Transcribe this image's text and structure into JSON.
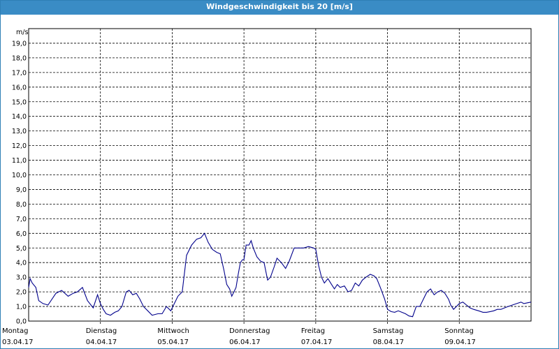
{
  "window": {
    "title": "Windgeschwindigkeit bis 20 [m/s]"
  },
  "colors": {
    "titlebar": "#3a8cc5",
    "line": "#00008b",
    "grid": "#000000"
  },
  "chart_data": {
    "type": "line",
    "title": "Windgeschwindigkeit bis 20 [m/s]",
    "ylabel": "m/s",
    "ylim": [
      0,
      20
    ],
    "xlim": [
      0,
      7
    ],
    "grid": true,
    "y_ticks": [
      0,
      1,
      2,
      3,
      4,
      5,
      6,
      7,
      8,
      9,
      10,
      11,
      12,
      13,
      14,
      15,
      16,
      17,
      18,
      19
    ],
    "y_tick_labels": [
      "0,0",
      "1,0",
      "2,0",
      "3,0",
      "4,0",
      "5,0",
      "6,0",
      "7,0",
      "8,0",
      "9,0",
      "10,0",
      "11,0",
      "12,0",
      "13,0",
      "14,0",
      "15,0",
      "16,0",
      "17,0",
      "18,0",
      "19,0"
    ],
    "days": [
      {
        "name": "Montag",
        "date": "03.04.17"
      },
      {
        "name": "Dienstag",
        "date": "04.04.17"
      },
      {
        "name": "Mittwoch",
        "date": "05.04.17"
      },
      {
        "name": "Donnerstag",
        "date": "06.04.17"
      },
      {
        "name": "Freitag",
        "date": "07.04.17"
      },
      {
        "name": "Samstag",
        "date": "08.04.17"
      },
      {
        "name": "Sonntag",
        "date": "09.04.17"
      }
    ],
    "series": [
      {
        "x": [
          0,
          0.02,
          0.05,
          0.1,
          0.14,
          0.2,
          0.27,
          0.38,
          0.46,
          0.55,
          0.62,
          0.68,
          0.75,
          0.82,
          0.9,
          0.96,
          1.0,
          1.04,
          1.08,
          1.14,
          1.2,
          1.25,
          1.3,
          1.36,
          1.4,
          1.45,
          1.5,
          1.55,
          1.6,
          1.66,
          1.72,
          1.8,
          1.86,
          1.92,
          1.98,
          2.03,
          2.08,
          2.14,
          2.2,
          2.27,
          2.34,
          2.4,
          2.45,
          2.5,
          2.56,
          2.62,
          2.67,
          2.72,
          2.76,
          2.8,
          2.83,
          2.86,
          2.89,
          2.92,
          2.95,
          2.98,
          3.0,
          3.03,
          3.07,
          3.1,
          3.13,
          3.18,
          3.23,
          3.28,
          3.33,
          3.37,
          3.42,
          3.46,
          3.52,
          3.58,
          3.63,
          3.7,
          3.77,
          3.83,
          3.9,
          3.97,
          4.0,
          4.04,
          4.08,
          4.12,
          4.17,
          4.22,
          4.26,
          4.3,
          4.34,
          4.4,
          4.45,
          4.5,
          4.55,
          4.6,
          4.65,
          4.7,
          4.76,
          4.81,
          4.85,
          4.9,
          4.96,
          5.0,
          5.05,
          5.1,
          5.15,
          5.2,
          5.25,
          5.3,
          5.35,
          5.4,
          5.45,
          5.5,
          5.55,
          5.6,
          5.65,
          5.7,
          5.75,
          5.8,
          5.85,
          5.88,
          5.92,
          5.96,
          6.0,
          6.05,
          6.1,
          6.15,
          6.2,
          6.27,
          6.33,
          6.38,
          6.43,
          6.48,
          6.53,
          6.58,
          6.63,
          6.68,
          6.74,
          6.8,
          6.86,
          6.9,
          6.95,
          7.0
        ],
        "values": [
          2.3,
          2.9,
          2.6,
          2.3,
          1.4,
          1.2,
          1.1,
          1.9,
          2.1,
          1.7,
          1.9,
          2.0,
          2.3,
          1.4,
          0.9,
          1.8,
          1.2,
          0.8,
          0.5,
          0.4,
          0.6,
          0.7,
          1.0,
          2.0,
          2.1,
          1.8,
          1.9,
          1.5,
          1.0,
          0.7,
          0.4,
          0.5,
          0.5,
          1.0,
          0.7,
          1.2,
          1.7,
          2.0,
          4.5,
          5.2,
          5.6,
          5.7,
          6.0,
          5.4,
          4.9,
          4.7,
          4.6,
          3.5,
          2.5,
          2.2,
          1.7,
          2.0,
          2.3,
          3.2,
          4.0,
          4.2,
          4.2,
          5.2,
          5.2,
          5.5,
          5.0,
          4.4,
          4.1,
          4.0,
          2.8,
          3.0,
          3.7,
          4.3,
          4.0,
          3.6,
          4.1,
          5.0,
          5.0,
          5.0,
          5.1,
          5.0,
          4.9,
          3.8,
          3.0,
          2.6,
          2.9,
          2.5,
          2.2,
          2.5,
          2.3,
          2.4,
          2.0,
          2.1,
          2.6,
          2.4,
          2.8,
          3.0,
          3.2,
          3.1,
          2.9,
          2.3,
          1.5,
          0.8,
          0.65,
          0.6,
          0.7,
          0.6,
          0.5,
          0.35,
          0.3,
          1.0,
          1.0,
          1.5,
          2.0,
          2.2,
          1.8,
          2.0,
          2.1,
          1.9,
          1.5,
          1.1,
          0.8,
          1.0,
          1.2,
          1.3,
          1.1,
          0.9,
          0.8,
          0.7,
          0.6,
          0.6,
          0.65,
          0.7,
          0.8,
          0.8,
          0.9,
          1.0,
          1.1,
          1.2,
          1.3,
          1.2,
          1.25,
          1.3
        ]
      }
    ]
  }
}
